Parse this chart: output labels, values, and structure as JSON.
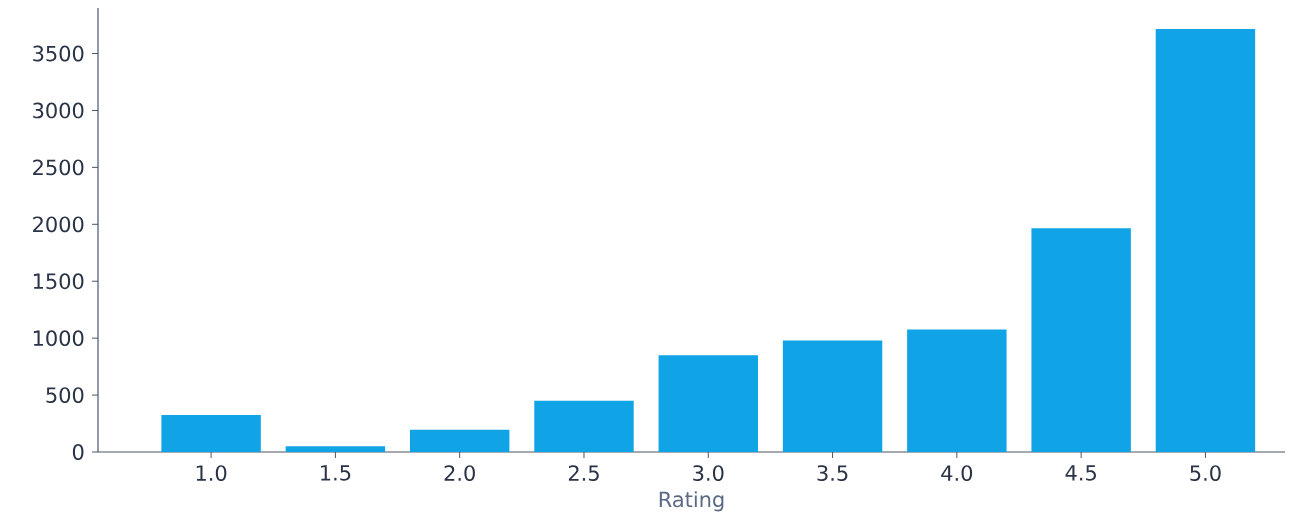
{
  "chart_data": {
    "type": "bar",
    "xlabel": "Rating",
    "categories": [
      "1.0",
      "1.5",
      "2.0",
      "2.5",
      "3.0",
      "3.5",
      "4.0",
      "4.5",
      "5.0"
    ],
    "values": [
      325,
      50,
      195,
      450,
      850,
      980,
      1075,
      1965,
      3715
    ],
    "color": "#10a4e6",
    "ylim": [
      0,
      3900
    ],
    "yticks": [
      0,
      500,
      1000,
      1500,
      2000,
      2500,
      3000,
      3500
    ]
  }
}
